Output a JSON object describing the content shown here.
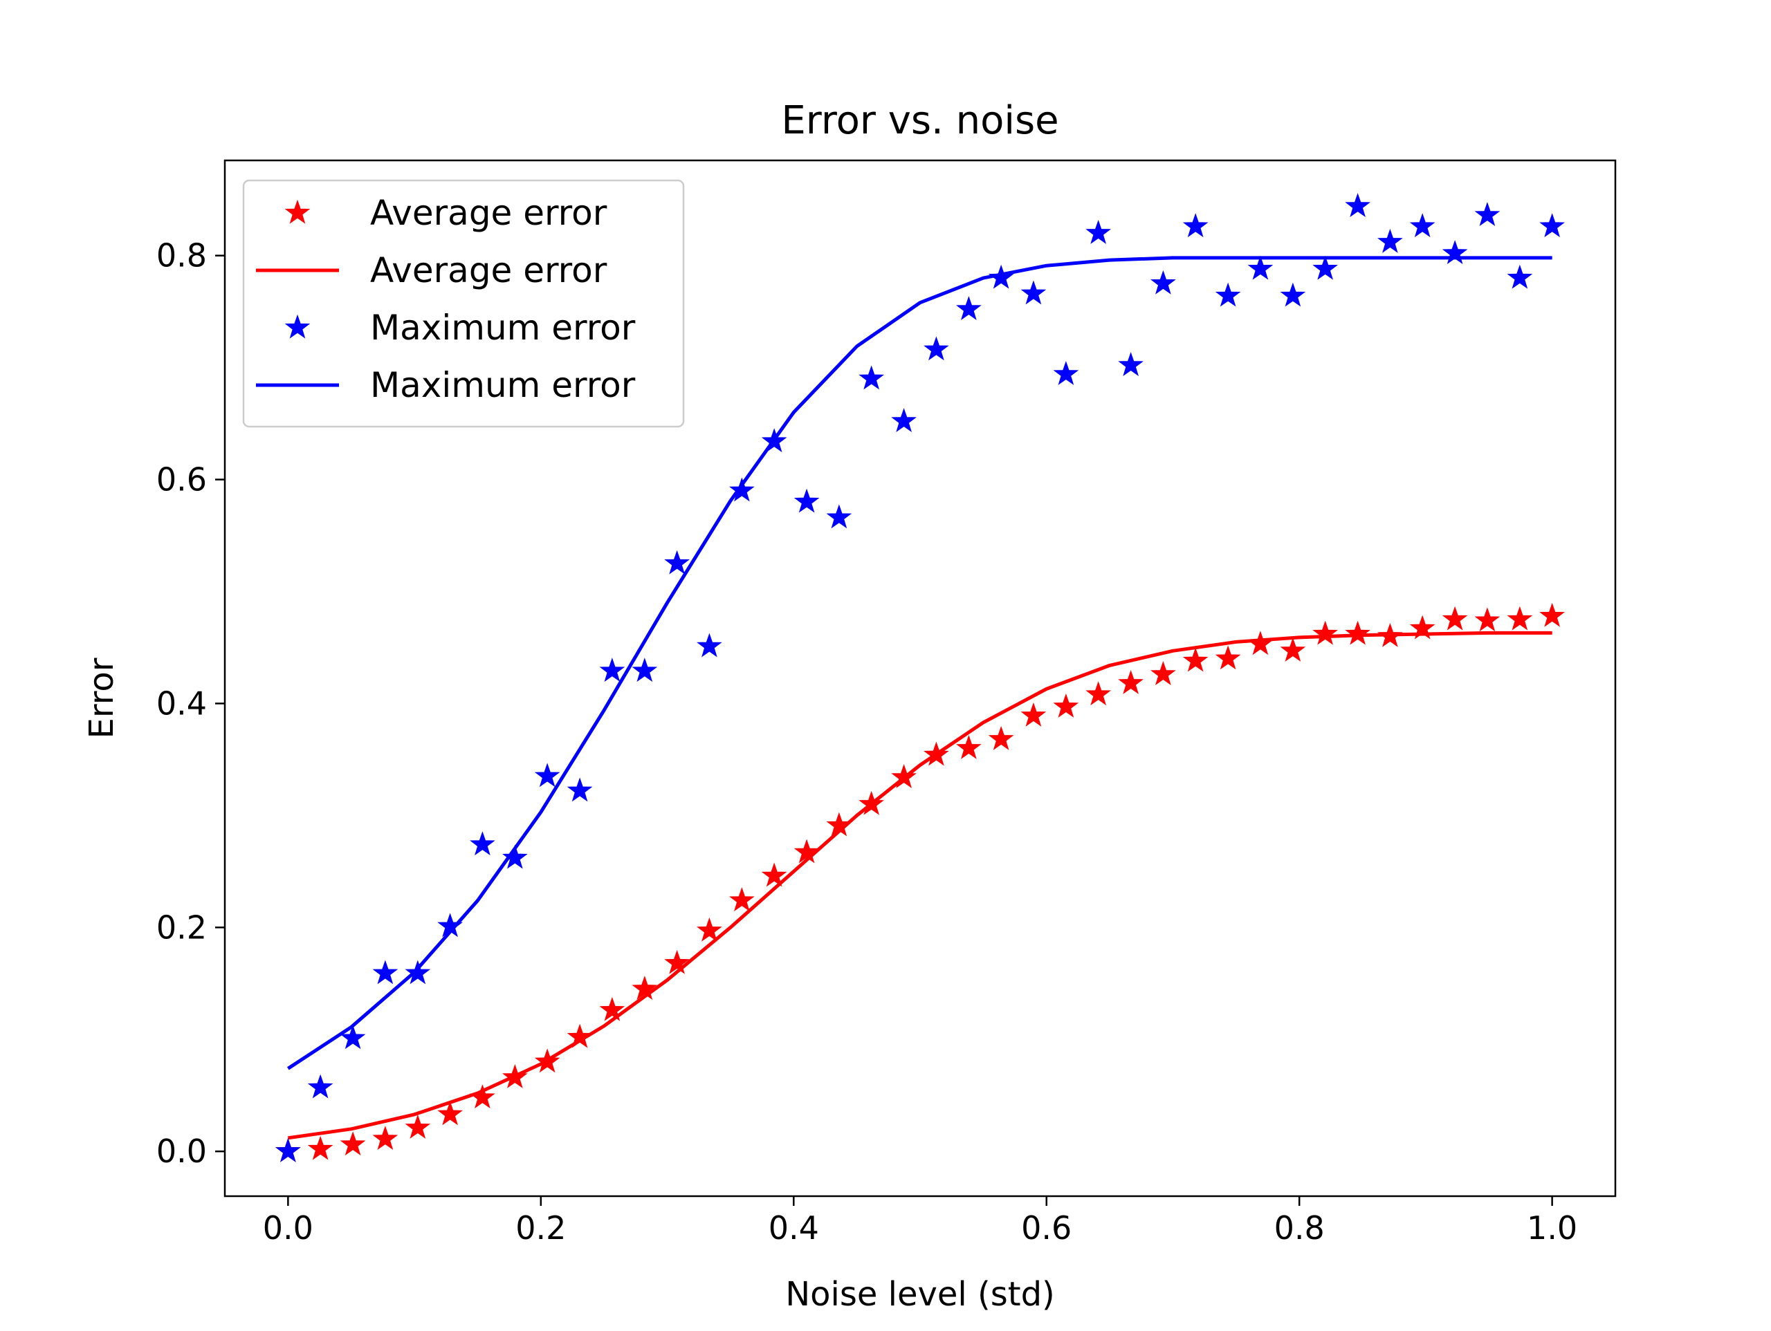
{
  "chart_data": {
    "type": "scatter",
    "title": "Error vs. noise",
    "xlabel": "Noise level (std)",
    "ylabel": "Error",
    "xlim": [
      -0.05,
      1.05
    ],
    "ylim": [
      -0.04,
      0.885
    ],
    "xticks": [
      0.0,
      0.2,
      0.4,
      0.6,
      0.8,
      1.0
    ],
    "xtick_labels": [
      "0.0",
      "0.2",
      "0.4",
      "0.6",
      "0.8",
      "1.0"
    ],
    "yticks": [
      0.0,
      0.2,
      0.4,
      0.6,
      0.8
    ],
    "ytick_labels": [
      "0.0",
      "0.2",
      "0.4",
      "0.6",
      "0.8"
    ],
    "grid": false,
    "legend_position": "upper-left",
    "series": [
      {
        "name": "Average error",
        "kind": "markers",
        "marker": "star",
        "color": "#ff0000",
        "x": [
          0.0,
          0.0256,
          0.0513,
          0.0769,
          0.1026,
          0.1282,
          0.1538,
          0.1795,
          0.2051,
          0.2308,
          0.2564,
          0.2821,
          0.3077,
          0.3333,
          0.359,
          0.3846,
          0.4103,
          0.4359,
          0.4615,
          0.4872,
          0.5128,
          0.5385,
          0.5641,
          0.5897,
          0.6154,
          0.641,
          0.6667,
          0.6923,
          0.7179,
          0.7436,
          0.7692,
          0.7949,
          0.8205,
          0.8462,
          0.8718,
          0.8974,
          0.9231,
          0.9487,
          0.9744,
          1.0
        ],
        "y": [
          0.0,
          0.002,
          0.006,
          0.011,
          0.021,
          0.033,
          0.048,
          0.066,
          0.08,
          0.102,
          0.126,
          0.145,
          0.168,
          0.197,
          0.224,
          0.246,
          0.267,
          0.291,
          0.31,
          0.334,
          0.354,
          0.36,
          0.368,
          0.389,
          0.397,
          0.408,
          0.418,
          0.426,
          0.438,
          0.44,
          0.453,
          0.447,
          0.462,
          0.462,
          0.46,
          0.467,
          0.475,
          0.474,
          0.475,
          0.478
        ]
      },
      {
        "name": "Average error",
        "kind": "line",
        "color": "#ff0000",
        "x": [
          0.0,
          0.05,
          0.1,
          0.15,
          0.2,
          0.25,
          0.3,
          0.35,
          0.4,
          0.45,
          0.5,
          0.55,
          0.6,
          0.65,
          0.7,
          0.75,
          0.8,
          0.85,
          0.9,
          0.95,
          1.0
        ],
        "y": [
          0.012,
          0.02,
          0.033,
          0.052,
          0.078,
          0.112,
          0.153,
          0.2,
          0.25,
          0.3,
          0.345,
          0.383,
          0.413,
          0.434,
          0.447,
          0.455,
          0.459,
          0.461,
          0.462,
          0.463,
          0.463
        ]
      },
      {
        "name": "Maximum error",
        "kind": "markers",
        "marker": "star",
        "color": "#0000ff",
        "x": [
          0.0,
          0.0256,
          0.0513,
          0.0769,
          0.1026,
          0.1282,
          0.1538,
          0.1795,
          0.2051,
          0.2308,
          0.2564,
          0.2821,
          0.3077,
          0.3333,
          0.359,
          0.3846,
          0.4103,
          0.4359,
          0.4615,
          0.4872,
          0.5128,
          0.5385,
          0.5641,
          0.5897,
          0.6154,
          0.641,
          0.6667,
          0.6923,
          0.7179,
          0.7436,
          0.7692,
          0.7949,
          0.8205,
          0.8462,
          0.8718,
          0.8974,
          0.9231,
          0.9487,
          0.9744,
          1.0
        ],
        "y": [
          0.0,
          0.057,
          0.101,
          0.159,
          0.159,
          0.201,
          0.274,
          0.262,
          0.335,
          0.322,
          0.429,
          0.429,
          0.525,
          0.451,
          0.59,
          0.634,
          0.58,
          0.566,
          0.69,
          0.652,
          0.716,
          0.752,
          0.78,
          0.766,
          0.694,
          0.82,
          0.702,
          0.775,
          0.826,
          0.764,
          0.788,
          0.764,
          0.788,
          0.844,
          0.812,
          0.826,
          0.802,
          0.836,
          0.78,
          0.826
        ]
      },
      {
        "name": "Maximum error",
        "kind": "line",
        "color": "#0000ff",
        "x": [
          0.0,
          0.05,
          0.1,
          0.15,
          0.2,
          0.25,
          0.3,
          0.35,
          0.4,
          0.45,
          0.5,
          0.55,
          0.6,
          0.65,
          0.7,
          0.75,
          0.8,
          0.85,
          0.9,
          0.95,
          1.0
        ],
        "y": [
          0.074,
          0.111,
          0.16,
          0.224,
          0.303,
          0.394,
          0.49,
          0.581,
          0.66,
          0.719,
          0.758,
          0.78,
          0.791,
          0.796,
          0.798,
          0.798,
          0.798,
          0.798,
          0.798,
          0.798,
          0.798
        ]
      }
    ]
  }
}
